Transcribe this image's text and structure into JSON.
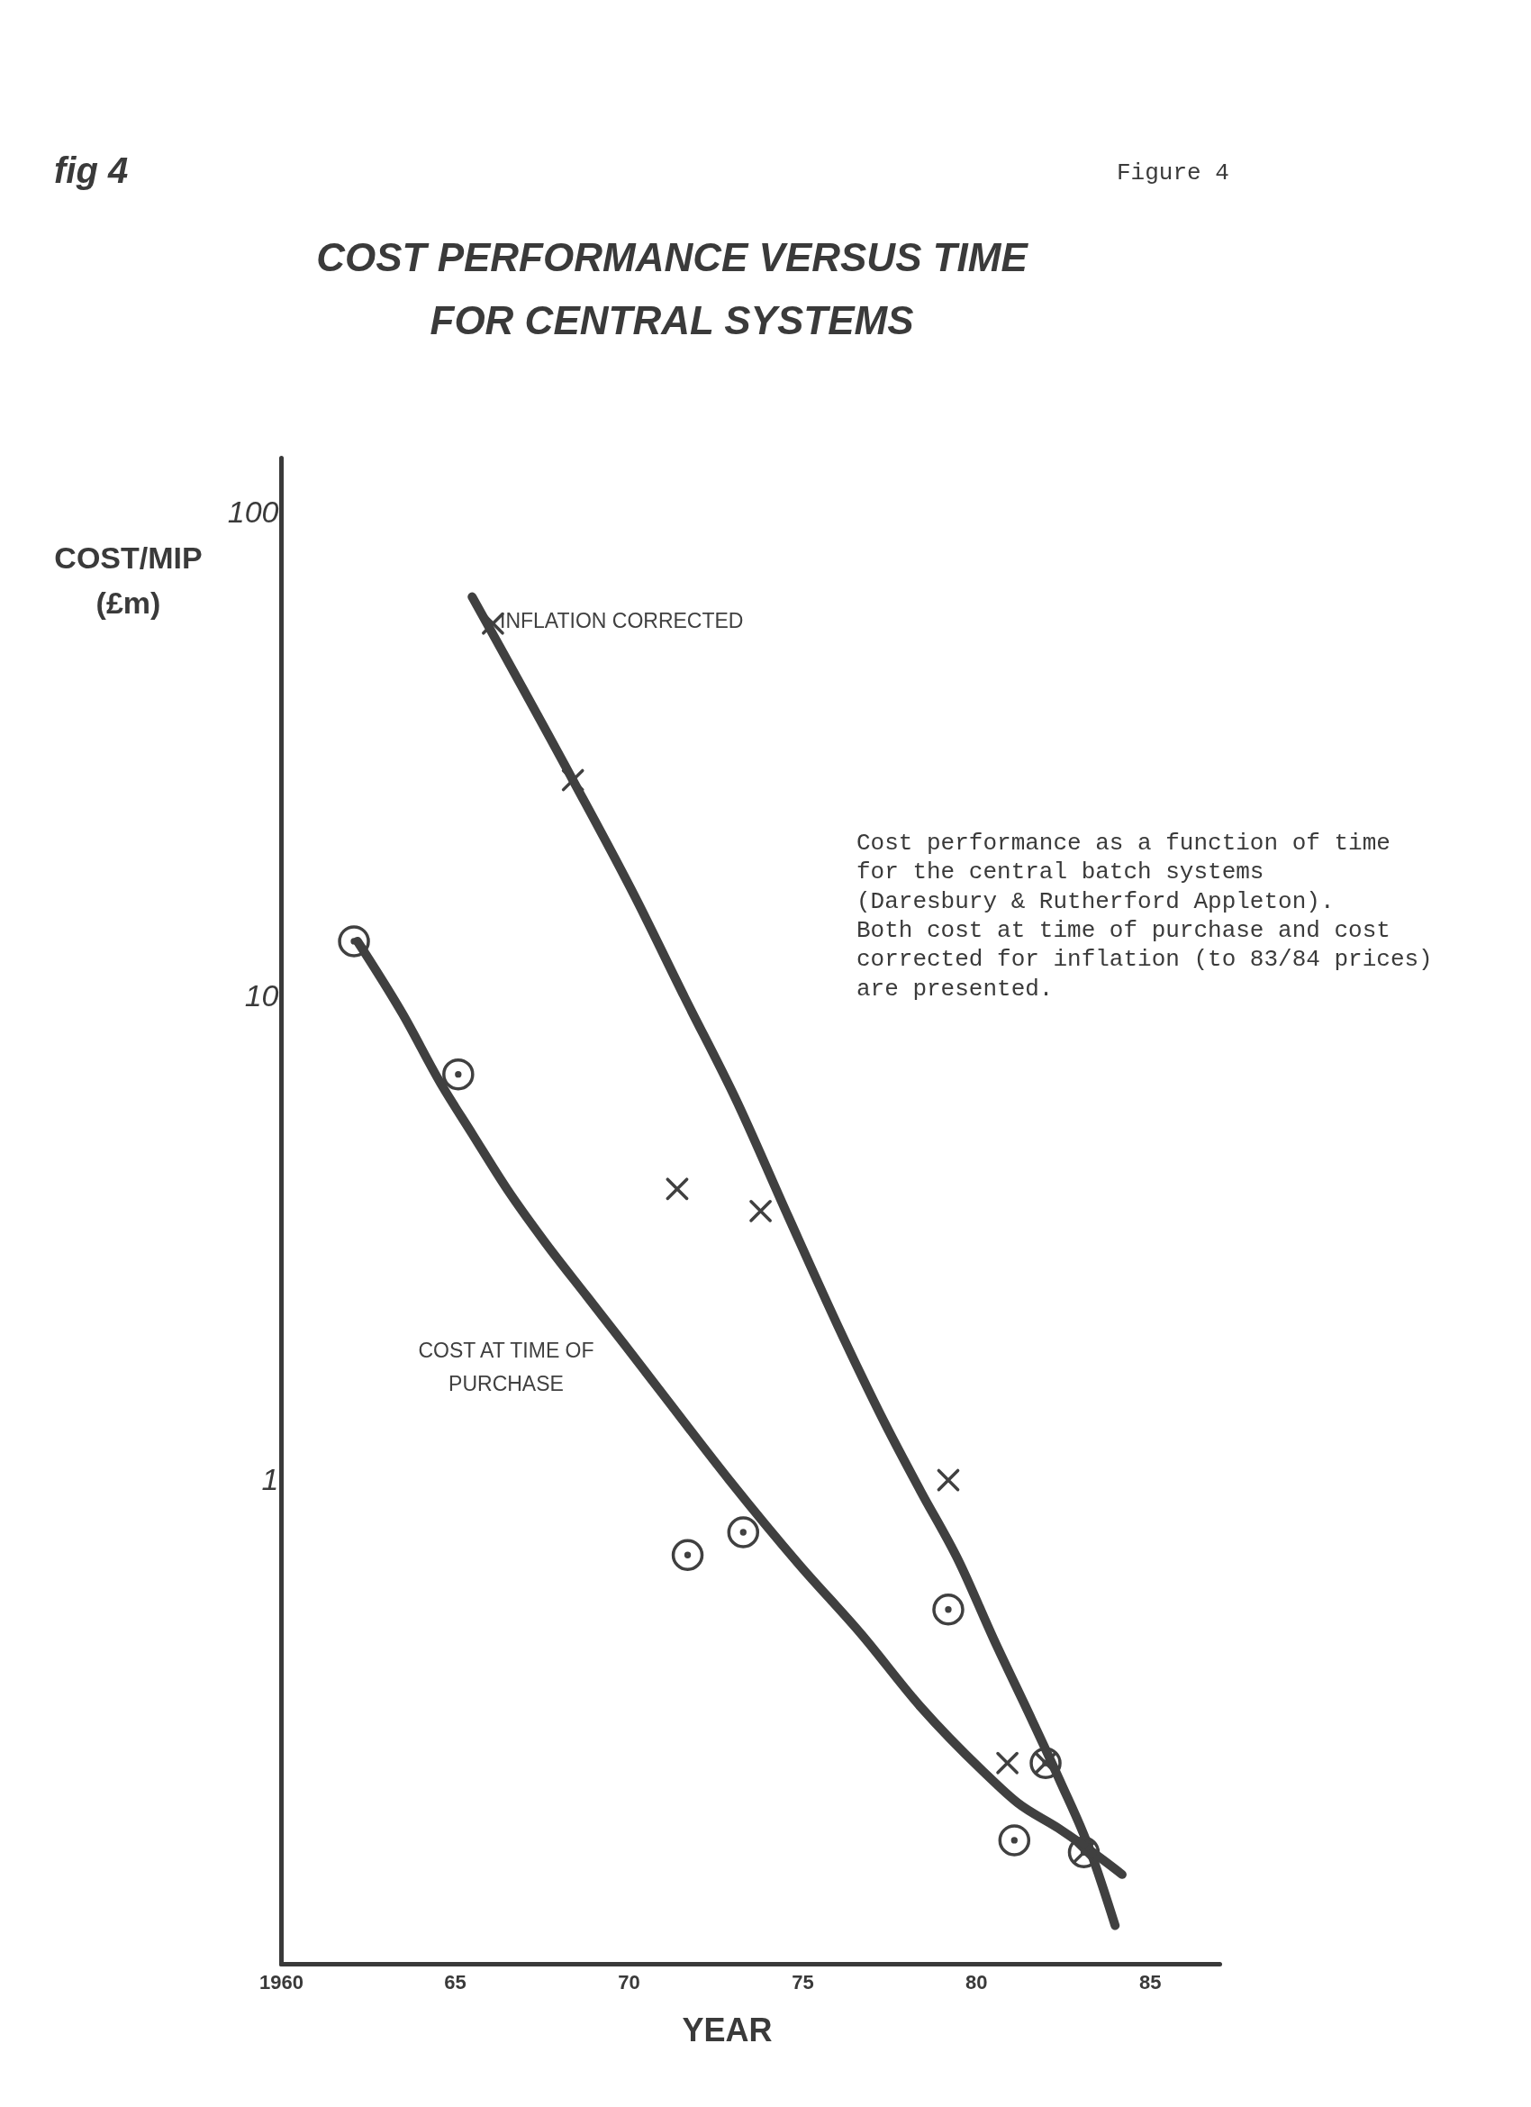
{
  "chart_data": {
    "type": "line",
    "title": "COST PERFORMANCE VERSUS TIME FOR CENTRAL SYSTEMS",
    "xlabel": "YEAR",
    "ylabel": "COST/MIP (£m)",
    "annotations": [
      "fig 4",
      "Figure 4",
      "Cost performance as a function of time\nfor the central batch systems\n(Daresbury & Rutherford Appleton).\nBoth cost at time of purchase and cost\ncorrected for inflation (to 83/84 prices)\nare presented."
    ],
    "log": true,
    "xlim": [
      1960,
      1987
    ],
    "xticks": [
      1960,
      {
        "value": 1965,
        "label": "65"
      },
      {
        "value": 1970,
        "label": "70"
      },
      {
        "value": 1975,
        "label": "75"
      },
      {
        "value": 1980,
        "label": "80"
      },
      {
        "value": 1985,
        "label": "85"
      }
    ],
    "ylim": [
      0.1,
      130
    ],
    "yticks": [
      1,
      10,
      100
    ],
    "series": [
      {
        "name": "INFLATION CORRECTED",
        "color": "#404040",
        "x": [
          1965.5,
          1968.4,
          1970.2,
          1971.6,
          1973.1,
          1974.6,
          1976.0,
          1977.4,
          1978.4,
          1979.5,
          1980.5,
          1981.6,
          1982.4,
          1983.3,
          1984.0
        ],
        "values": [
          67,
          28,
          16,
          10,
          6.1,
          3.5,
          2.1,
          1.3,
          0.95,
          0.68,
          0.47,
          0.32,
          0.24,
          0.17,
          0.12
        ]
      },
      {
        "name": "COST AT TIME OF PURCHASE",
        "color": "#404040",
        "x": [
          1962.2,
          1963.5,
          1964.6,
          1965.5,
          1966.5,
          1967.6,
          1968.8,
          1969.9,
          1971.0,
          1972.9,
          1974.9,
          1976.7,
          1978.4,
          1980.2,
          1981.2,
          1982.4,
          1983.7,
          1984.2
        ],
        "values": [
          13,
          9.2,
          6.6,
          5.2,
          4.0,
          3.1,
          2.4,
          1.9,
          1.5,
          1.0,
          0.67,
          0.48,
          0.34,
          0.25,
          0.215,
          0.19,
          0.163,
          0.153
        ]
      },
      {
        "type": "scatter",
        "marker": "cross",
        "color": "#404040",
        "x": [
          1966.1,
          1968.4,
          1971.4,
          1973.8,
          1979.2,
          1980.9,
          1982.0,
          1983.1
        ],
        "values": [
          59,
          28,
          4.0,
          3.6,
          1.0,
          0.26,
          0.26,
          0.17
        ]
      },
      {
        "type": "scatter",
        "marker": "circle",
        "color": "#404040",
        "x": [
          1962.1,
          1965.1,
          1971.7,
          1973.3,
          1979.2,
          1981.1,
          1982.0,
          1983.1
        ],
        "values": [
          13,
          6.9,
          0.7,
          0.78,
          0.54,
          0.18,
          0.26,
          0.17
        ]
      }
    ]
  }
}
